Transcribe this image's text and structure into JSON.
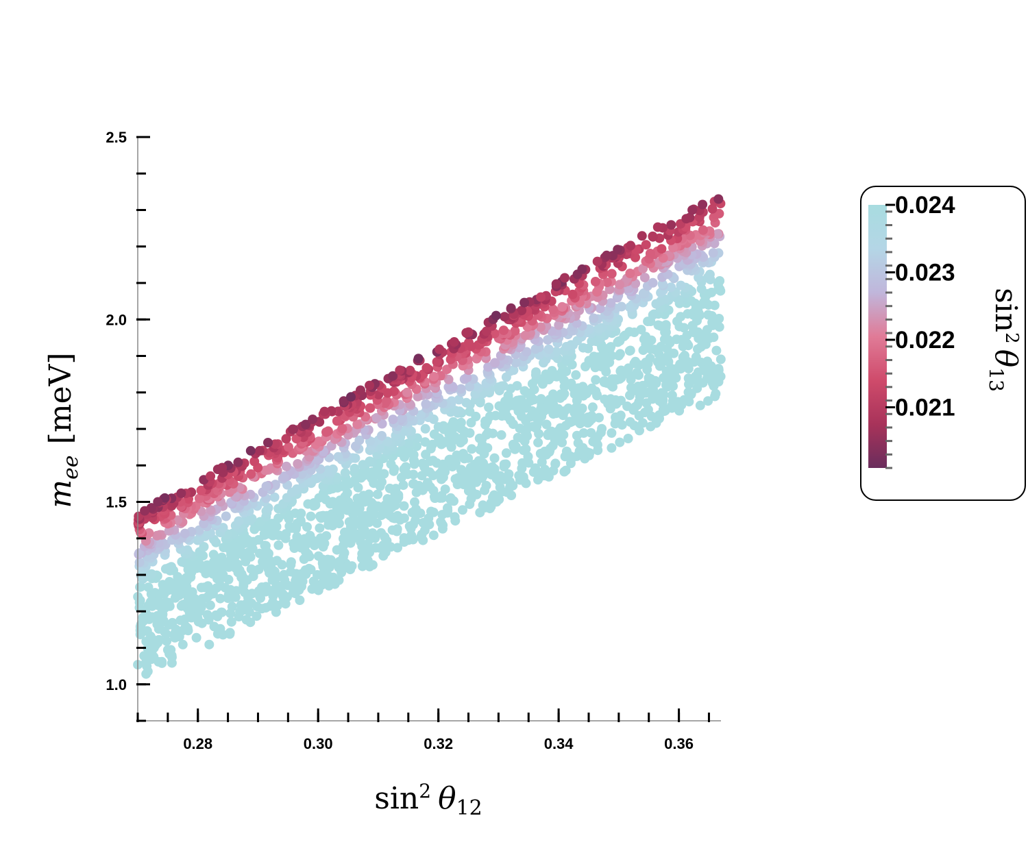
{
  "colors": {
    "colormap": [
      "#6a2d5c",
      "#a8335a",
      "#cf4b6b",
      "#e07b97",
      "#c0b6db",
      "#b4d6e6",
      "#a8dce0"
    ],
    "axis": "#000000",
    "cbar_tick": "#666666"
  },
  "chart_data": {
    "type": "scatter",
    "title": "",
    "xlabel": {
      "main": "sin",
      "sup": "2",
      "var": "θ",
      "sub": "12"
    },
    "ylabel": {
      "main": "m",
      "sub": "ee",
      "unit": "[meV]"
    },
    "xlim": [
      0.27,
      0.367
    ],
    "ylim": [
      0.9,
      2.5
    ],
    "xticks": [
      0.28,
      0.3,
      0.32,
      0.34,
      0.36
    ],
    "xtick_labels": [
      "0.28",
      "0.30",
      "0.32",
      "0.34",
      "0.36"
    ],
    "yticks": [
      1.0,
      1.5,
      2.0,
      2.5
    ],
    "ytick_labels": [
      "1.0",
      "1.5",
      "2.0",
      "2.5"
    ],
    "x_minor_step": 0.005,
    "y_minor_step": 0.1,
    "grid": false,
    "colorbar": {
      "label": {
        "main": "sin",
        "sup": "2",
        "var": "θ",
        "sub": "13"
      },
      "range": [
        0.0201,
        0.024
      ],
      "ticks": [
        0.021,
        0.022,
        0.023,
        0.024
      ],
      "tick_labels": [
        "0.021",
        "0.022",
        "0.023",
        "0.024"
      ],
      "minor_step": 0.0002,
      "placement": "right"
    },
    "band": {
      "description_free": true,
      "lower_edge": [
        [
          0.27,
          1.01
        ],
        [
          0.367,
          1.79
        ]
      ],
      "upper_edge": [
        [
          0.27,
          1.47
        ],
        [
          0.367,
          2.35
        ]
      ],
      "color_var_range": [
        0.0201,
        0.024
      ]
    }
  }
}
